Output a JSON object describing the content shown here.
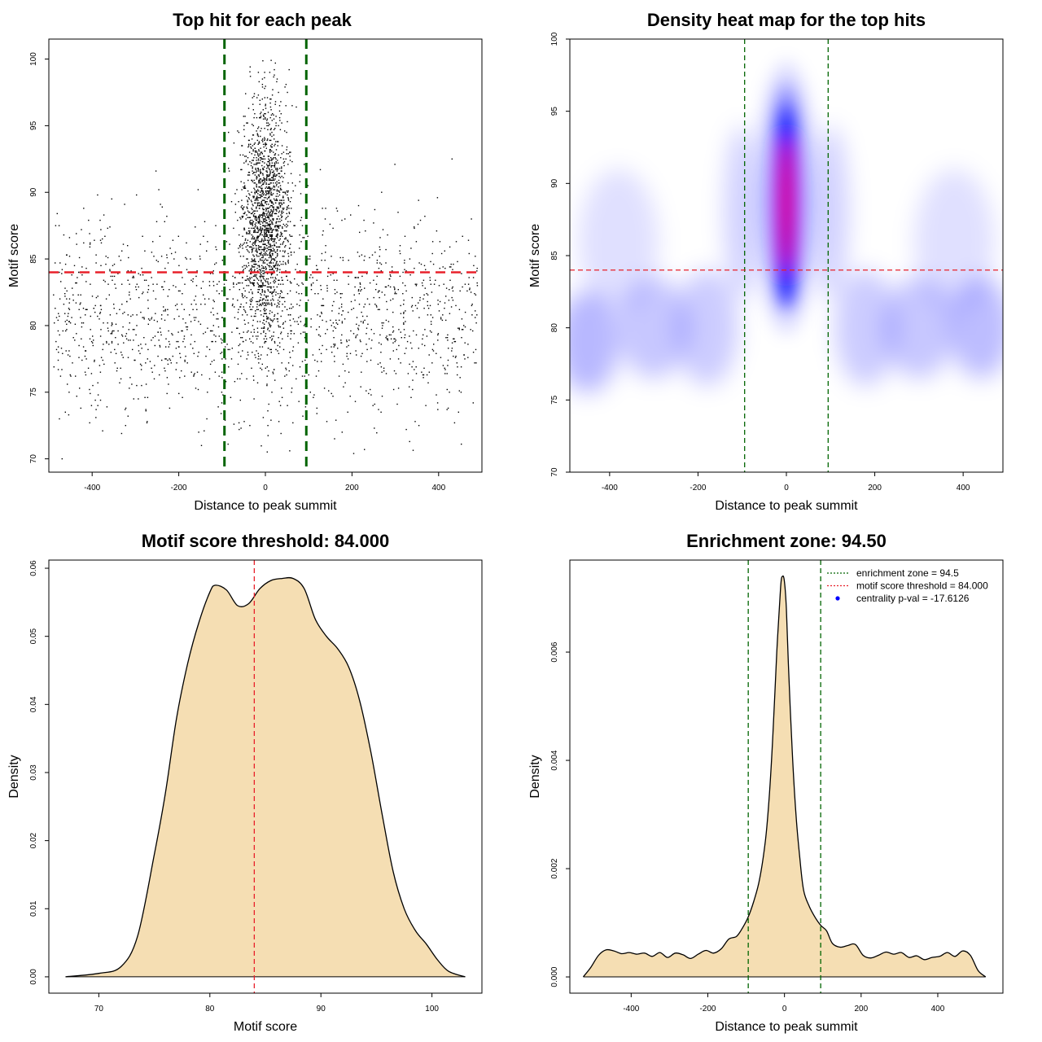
{
  "chart_data": [
    {
      "panel": "scatter",
      "type": "scatter",
      "title": "Top hit for each peak",
      "xlabel": "Distance to peak summit",
      "ylabel": "Motif score",
      "xlim": [
        -500,
        500
      ],
      "ylim": [
        69,
        101.5
      ],
      "xticks": [
        -400,
        -200,
        0,
        200,
        400
      ],
      "yticks": [
        70,
        75,
        80,
        85,
        90,
        95,
        100
      ],
      "threshold": 84,
      "enrichment_zone": [
        -94.5,
        94.5
      ],
      "threshold_color": "#e8202a",
      "zone_color": "#006400",
      "point_color": "#000000",
      "point_distribution": {
        "central_fraction": 0.55,
        "central_sd_x": 28,
        "central_score_mean": 88,
        "central_score_sd": 4.5,
        "background_score_mean": 80.5,
        "background_score_sd": 3.8,
        "n_points": 3300
      }
    },
    {
      "panel": "heatmap",
      "type": "heatmap",
      "title": "Density heat map for the top hits",
      "xlabel": "Distance to peak summit",
      "ylabel": "Motif score",
      "xlim": [
        -490,
        490
      ],
      "ylim": [
        70,
        100
      ],
      "xticks": [
        -400,
        -200,
        0,
        200,
        400
      ],
      "yticks": [
        70,
        75,
        80,
        85,
        90,
        95,
        100
      ],
      "threshold": 84,
      "enrichment_zone": [
        -94.5,
        94.5
      ],
      "palette": [
        "#ffffff",
        "#0000ff",
        "#ff0000"
      ],
      "threshold_color": "#e8202a",
      "zone_color": "#006400"
    },
    {
      "panel": "score-density",
      "type": "area",
      "title": "Motif score threshold: 84.000",
      "xlabel": "Motif score",
      "ylabel": "Density",
      "xlim": [
        65.5,
        104.5
      ],
      "ylim": [
        -0.0024,
        0.0612
      ],
      "xticks": [
        70,
        80,
        90,
        100
      ],
      "yticks": [
        0.0,
        0.01,
        0.02,
        0.03,
        0.04,
        0.05,
        0.06
      ],
      "ytick_labels": [
        "0.00",
        "0.01",
        "0.02",
        "0.03",
        "0.04",
        "0.05",
        "0.06"
      ],
      "threshold": 84,
      "fill_color": "#f5deb3",
      "threshold_color": "#e8202a",
      "x": [
        67,
        70,
        72,
        73.5,
        75,
        76,
        77,
        78,
        79,
        80,
        80.5,
        81.5,
        82.5,
        83.5,
        84.5,
        85.5,
        86.5,
        87.5,
        88.5,
        89.5,
        90.5,
        91.5,
        92.5,
        93.5,
        94.5,
        95.5,
        96.5,
        97.5,
        98.5,
        99.5,
        100.5,
        101.5,
        103
      ],
      "y": [
        0.0,
        0.0005,
        0.0015,
        0.006,
        0.018,
        0.027,
        0.038,
        0.046,
        0.052,
        0.0565,
        0.0575,
        0.0568,
        0.0545,
        0.0548,
        0.057,
        0.0582,
        0.0585,
        0.0585,
        0.057,
        0.0525,
        0.05,
        0.0482,
        0.0455,
        0.0405,
        0.033,
        0.024,
        0.0155,
        0.01,
        0.0068,
        0.0048,
        0.0025,
        0.0008,
        0.0
      ]
    },
    {
      "panel": "distance-density",
      "type": "area",
      "title": "Enrichment zone: 94.50",
      "xlabel": "Distance to peak summit",
      "ylabel": "Density",
      "xlim": [
        -560,
        570
      ],
      "ylim": [
        -0.0003,
        0.0077
      ],
      "xticks": [
        -400,
        -200,
        0,
        200,
        400
      ],
      "yticks": [
        0.0,
        0.002,
        0.004,
        0.006
      ],
      "ytick_labels": [
        "0.000",
        "0.002",
        "0.004",
        "0.006"
      ],
      "enrichment_zone": [
        -94.5,
        94.5
      ],
      "fill_color": "#f5deb3",
      "zone_color": "#006400",
      "x": [
        -525,
        -505,
        -485,
        -465,
        -445,
        -425,
        -405,
        -385,
        -365,
        -345,
        -325,
        -305,
        -285,
        -265,
        -245,
        -225,
        -205,
        -185,
        -165,
        -145,
        -125,
        -110,
        -95,
        -80,
        -65,
        -50,
        -40,
        -30,
        -20,
        -10,
        -5,
        0,
        5,
        10,
        20,
        30,
        40,
        50,
        65,
        80,
        95,
        110,
        125,
        145,
        165,
        185,
        205,
        225,
        245,
        265,
        285,
        305,
        325,
        345,
        365,
        385,
        405,
        425,
        445,
        465,
        485,
        505,
        525
      ],
      "y": [
        0.0,
        0.00018,
        0.0004,
        0.0005,
        0.00048,
        0.00043,
        0.00045,
        0.00042,
        0.00044,
        0.00038,
        0.00045,
        0.00036,
        0.00044,
        0.00041,
        0.00034,
        0.00042,
        0.00049,
        0.00044,
        0.00052,
        0.0007,
        0.00075,
        0.0009,
        0.0011,
        0.0014,
        0.0018,
        0.0025,
        0.0033,
        0.0045,
        0.006,
        0.0072,
        0.0074,
        0.0073,
        0.0068,
        0.0058,
        0.0042,
        0.003,
        0.0022,
        0.0016,
        0.0013,
        0.0011,
        0.00095,
        0.00085,
        0.00062,
        0.00055,
        0.00058,
        0.0006,
        0.0004,
        0.00035,
        0.0004,
        0.00046,
        0.00042,
        0.00045,
        0.00036,
        0.00039,
        0.00032,
        0.00036,
        0.00038,
        0.00045,
        0.00038,
        0.00048,
        0.0004,
        0.00012,
        0.0
      ],
      "legend": {
        "position": "top-right",
        "items": [
          {
            "label": "enrichment zone = 94.5",
            "symbol": "dotted-line",
            "color": "#006400"
          },
          {
            "label": "motif score threshold = 84.000",
            "symbol": "dotted-line",
            "color": "#e8202a"
          },
          {
            "label": "centrality p-val = -17.6126",
            "symbol": "point",
            "color": "#0000ff"
          }
        ]
      }
    }
  ]
}
